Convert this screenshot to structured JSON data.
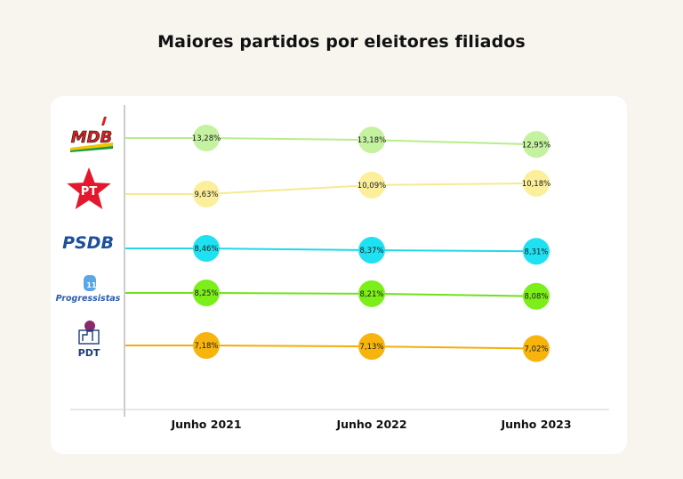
{
  "title": "Maiores partidos por eleitores filiados",
  "chart_data": {
    "type": "line",
    "title": "Maiores partidos por eleitores filiados",
    "categories": [
      "Junho 2021",
      "Junho 2022",
      "Junho 2023"
    ],
    "series": [
      {
        "name": "MDB",
        "values": [
          13.28,
          13.18,
          12.95
        ],
        "labels": [
          "13,28%",
          "13,18%",
          "12,95%"
        ],
        "color": "#c4f2a0",
        "line_color": "#b5ee8a"
      },
      {
        "name": "PT",
        "values": [
          9.63,
          10.09,
          10.18
        ],
        "labels": [
          "9,63%",
          "10,09%",
          "10,18%"
        ],
        "color": "#fbef9b",
        "line_color": "#f6ea8e"
      },
      {
        "name": "PSDB",
        "values": [
          8.46,
          8.37,
          8.31
        ],
        "labels": [
          "8,46%",
          "8,37%",
          "8,31%"
        ],
        "color": "#1ee1f2",
        "line_color": "#1ed9ea"
      },
      {
        "name": "Progressistas",
        "values": [
          8.25,
          8.21,
          8.08
        ],
        "labels": [
          "8,25%",
          "8,21%",
          "8,08%"
        ],
        "color": "#7cee1a",
        "line_color": "#6ee21a"
      },
      {
        "name": "PDT",
        "values": [
          7.18,
          7.13,
          7.02
        ],
        "labels": [
          "7,18%",
          "7,13%",
          "7,02%"
        ],
        "color": "#f7b40c",
        "line_color": "#f3ad0a"
      }
    ],
    "logos": [
      {
        "text": "MDB",
        "color": "#d8201e"
      },
      {
        "text": "PT",
        "color": "#e3182d"
      },
      {
        "text": "PSDB",
        "color": "#1e4e9c"
      },
      {
        "text": "Progressistas",
        "sub": "11",
        "color": "#2b5cab"
      },
      {
        "text": "PDT",
        "color": "#1b3d7a"
      }
    ],
    "grid": false,
    "legend": "left logos"
  }
}
